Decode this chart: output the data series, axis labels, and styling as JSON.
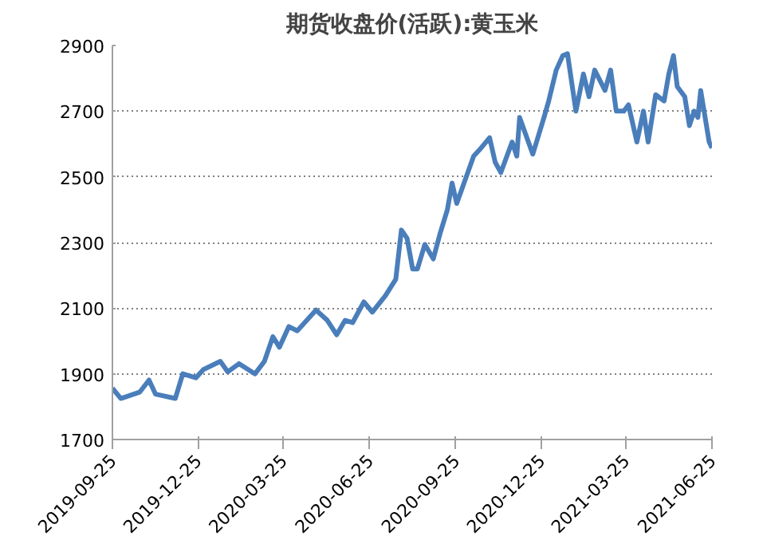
{
  "chart_data": {
    "type": "line",
    "title": "期货收盘价(活跃):黄玉米",
    "color": "#4a7ebb",
    "x": [
      "2019-09-25",
      "2019-10-04",
      "2019-10-24",
      "2019-11-03",
      "2019-11-10",
      "2019-12-01",
      "2019-12-09",
      "2019-12-23",
      "2019-12-31",
      "2020-01-18",
      "2020-01-26",
      "2020-02-07",
      "2020-02-24",
      "2020-03-05",
      "2020-03-14",
      "2020-03-21",
      "2020-03-31",
      "2020-04-09",
      "2020-04-29",
      "2020-05-11",
      "2020-05-21",
      "2020-05-30",
      "2020-06-07",
      "2020-06-19",
      "2020-06-28",
      "2020-07-12",
      "2020-07-23",
      "2020-07-29",
      "2020-08-04",
      "2020-08-10",
      "2020-08-15",
      "2020-08-23",
      "2020-09-01",
      "2020-09-08",
      "2020-09-16",
      "2020-09-21",
      "2020-09-26",
      "2020-10-14",
      "2020-10-22",
      "2020-10-31",
      "2020-11-06",
      "2020-11-12",
      "2020-11-24",
      "2020-11-29",
      "2020-12-02",
      "2020-12-16",
      "2020-12-28",
      "2021-01-02",
      "2021-01-10",
      "2021-01-17",
      "2021-01-22",
      "2021-01-31",
      "2021-02-08",
      "2021-02-14",
      "2021-02-20",
      "2021-03-03",
      "2021-03-09",
      "2021-03-15",
      "2021-03-23",
      "2021-03-28",
      "2021-04-06",
      "2021-04-13",
      "2021-04-18",
      "2021-04-26",
      "2021-05-05",
      "2021-05-10",
      "2021-05-15",
      "2021-05-19",
      "2021-05-27",
      "2021-06-01",
      "2021-06-06",
      "2021-06-10",
      "2021-06-13",
      "2021-06-22",
      "2021-06-25"
    ],
    "values": [
      1856,
      1825,
      1844,
      1881,
      1838,
      1825,
      1900,
      1888,
      1913,
      1938,
      1906,
      1931,
      1900,
      1938,
      2013,
      1981,
      2044,
      2031,
      2094,
      2063,
      2019,
      2063,
      2056,
      2119,
      2088,
      2138,
      2188,
      2338,
      2313,
      2219,
      2219,
      2294,
      2250,
      2325,
      2400,
      2481,
      2419,
      2563,
      2588,
      2619,
      2544,
      2513,
      2606,
      2563,
      2681,
      2569,
      2681,
      2731,
      2825,
      2869,
      2875,
      2700,
      2813,
      2744,
      2825,
      2763,
      2825,
      2700,
      2700,
      2719,
      2606,
      2700,
      2606,
      2750,
      2731,
      2813,
      2869,
      2775,
      2744,
      2656,
      2700,
      2681,
      2763,
      2606,
      2588
    ],
    "xlim": [
      "2019-09-25",
      "2021-06-25"
    ],
    "xticks": [
      "2019-09-25",
      "2019-12-25",
      "2020-03-25",
      "2020-06-25",
      "2020-09-25",
      "2020-12-25",
      "2021-03-25",
      "2021-06-25"
    ],
    "ylim": [
      1700,
      2900
    ],
    "yticks": [
      1700,
      1900,
      2100,
      2300,
      2500,
      2700,
      2900
    ],
    "grid": "y"
  }
}
